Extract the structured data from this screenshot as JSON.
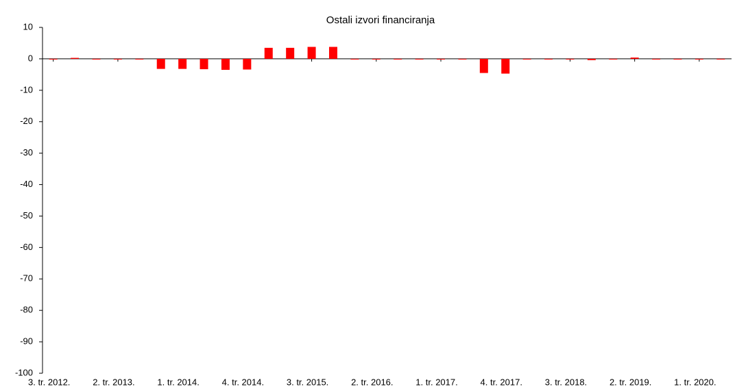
{
  "chart_data": {
    "type": "bar",
    "title": "Ostali izvori financiranja",
    "categories": [
      "3. tr. 2012.",
      null,
      null,
      "2. tr. 2013.",
      null,
      null,
      "1. tr. 2014.",
      null,
      null,
      "4. tr. 2014.",
      null,
      null,
      "3. tr. 2015.",
      null,
      null,
      "2. tr. 2016.",
      null,
      null,
      "1. tr. 2017.",
      null,
      null,
      "4. tr. 2017.",
      null,
      null,
      "3. tr. 2018.",
      null,
      null,
      "2. tr. 2019.",
      null,
      null,
      "1. tr. 2020.",
      null
    ],
    "values": [
      -0.2,
      0.3,
      0,
      0,
      0,
      -3.2,
      -3.2,
      -3.3,
      -3.5,
      -3.4,
      3.5,
      3.5,
      3.8,
      3.8,
      -0.1,
      0,
      0,
      0,
      0,
      -0.2,
      -4.5,
      -4.7,
      0,
      0,
      0,
      -0.4,
      0,
      0.4,
      0,
      0,
      0,
      0
    ],
    "color": "#ff0000",
    "ylim": [
      -100,
      10
    ],
    "yticks": [
      -100,
      -90,
      -80,
      -70,
      -60,
      -50,
      -40,
      -30,
      -20,
      -10,
      0,
      10
    ]
  }
}
